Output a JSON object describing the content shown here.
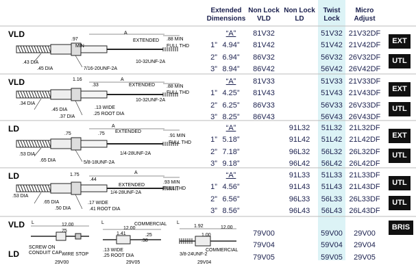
{
  "header": {
    "extended": "Extended Dimensions",
    "vld": "Non Lock VLD",
    "ld": "Non Lock LD",
    "twist": "Twist Lock",
    "micro": "Micro Adjust"
  },
  "sections": [
    {
      "label": "VLD",
      "rows": [
        {
          "dim": "“A”",
          "vld": "81V32",
          "twist": "51V32",
          "micro": "21V32DF"
        },
        {
          "inch": "1”",
          "dim": "4.94”",
          "vld": "81V42",
          "twist": "51V42",
          "micro": "21V42DF"
        },
        {
          "inch": "2”",
          "dim": "6.94”",
          "vld": "86V32",
          "twist": "56V32",
          "micro": "26V32DF"
        },
        {
          "inch": "3”",
          "dim": "8.94”",
          "vld": "86V42",
          "twist": "56V42",
          "micro": "26V42DF"
        }
      ],
      "badges": [
        "EXT",
        "UTL"
      ],
      "drawing_labels": [
        ".97",
        "A",
        "EXTENDED",
        ".88 MIN",
        "FULL THD",
        "MIN",
        "10-32UNF-2A",
        ".43 DIA",
        ".45 DIA",
        "7/16-20UNF-2A"
      ]
    },
    {
      "label": "VLD",
      "rows": [
        {
          "dim": "“A”",
          "vld": "81V33",
          "twist": "51V33",
          "micro": "21V33DF"
        },
        {
          "inch": "1”",
          "dim": "4.25”",
          "vld": "81V43",
          "twist": "51V43",
          "micro": "21V43DF"
        },
        {
          "inch": "2”",
          "dim": "6.25”",
          "vld": "86V33",
          "twist": "56V33",
          "micro": "26V33DF"
        },
        {
          "inch": "3”",
          "dim": "8.25”",
          "vld": "86V43",
          "twist": "56V43",
          "micro": "26V43DF"
        }
      ],
      "badges": [
        "EXT",
        "UTL"
      ],
      "drawing_labels": [
        "1.16",
        ".33",
        "A",
        "EXTENDED",
        ".88 MIN",
        "FULL THD",
        "10-32UNF-2A",
        ".34 DIA",
        ".45 DIA",
        ".37 DIA",
        ".13 WIDE",
        ".25 ROOT DIA"
      ]
    },
    {
      "label": "LD",
      "rows": [
        {
          "dim": "“A”",
          "ld": "91L32",
          "twist": "51L32",
          "micro": "21L32DF"
        },
        {
          "inch": "1”",
          "dim": "5.18”",
          "ld": "91L42",
          "twist": "51L42",
          "micro": "21L42DF"
        },
        {
          "inch": "2”",
          "dim": "7.18”",
          "ld": "96L32",
          "twist": "56L32",
          "micro": "26L32DF"
        },
        {
          "inch": "3”",
          "dim": "9.18”",
          "ld": "96L42",
          "twist": "56L42",
          "micro": "26L42DF"
        }
      ],
      "badges": [
        "EXT",
        "UTL"
      ],
      "drawing_labels": [
        ".75",
        ".75",
        "A",
        "EXTENDED",
        ".91 MIN",
        "FULL THD",
        "1/4-28UNF-2A",
        ".53 DIA",
        ".65 DIA",
        "5/8-18UNF-2A"
      ]
    },
    {
      "label": "LD",
      "rows": [
        {
          "dim": "“A”",
          "ld": "91L33",
          "twist": "51L33",
          "micro": "21L33DF"
        },
        {
          "inch": "1”",
          "dim": "4.56”",
          "ld": "91L43",
          "twist": "51L43",
          "micro": "21L43DF"
        },
        {
          "inch": "2”",
          "dim": "6.56”",
          "ld": "96L33",
          "twist": "56L33",
          "micro": "26L33DF"
        },
        {
          "inch": "3”",
          "dim": "8.56”",
          "ld": "96L43",
          "twist": "56L43",
          "micro": "26L43DF"
        }
      ],
      "badges": [
        "UTL",
        "UTL"
      ],
      "drawing_labels": [
        "1.75",
        ".44",
        "A",
        "EXTENDED",
        ".93 MIN",
        "FULL THD",
        "1/4-28UNF-2A",
        ".53 DIA",
        ".65 DIA",
        ".50 DIA",
        ".17 WIDE",
        ".41 ROOT DIA"
      ]
    }
  ],
  "bottom": {
    "labels": [
      "VLD",
      "LD"
    ],
    "rows": [
      {
        "vld": "79V00",
        "twist": "59V00",
        "micro": "29V00"
      },
      {
        "vld": "79V04",
        "twist": "59V04",
        "micro": "29V04"
      },
      {
        "vld": "79V05",
        "twist": "59V05",
        "micro": "29V05"
      }
    ],
    "badges": [
      "BRIS"
    ],
    "drawing_labels": [
      "L",
      "12.00",
      ".75",
      "SCREW ON",
      "CONDUIT CAP",
      "WIRE STOP",
      "29V00",
      "L",
      "COMMERCIAL",
      "12.00",
      "1.41",
      ".25",
      ".38",
      ".13 WIDE",
      ".25 ROOT DIA",
      "29V05",
      "L",
      "1.92",
      "12.00",
      "1.00",
      "3/8-24UNF-2",
      "COMMERCIAL",
      "29V04"
    ]
  }
}
